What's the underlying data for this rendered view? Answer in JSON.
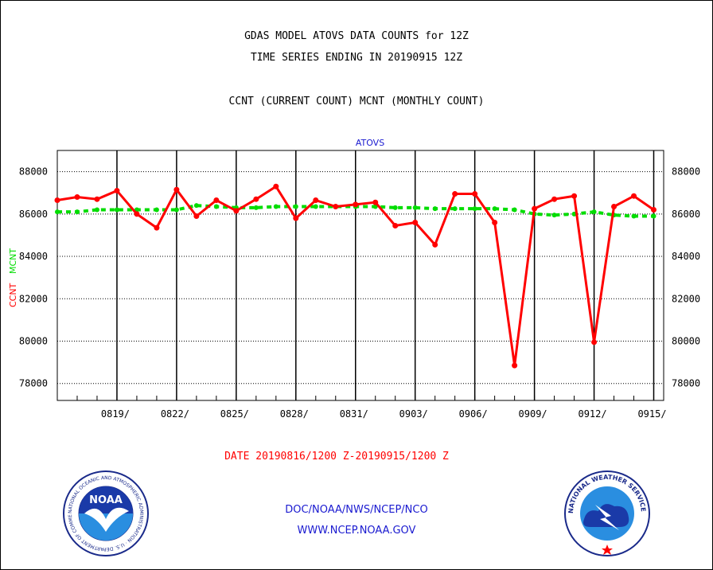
{
  "header": {
    "line1": "GDAS MODEL ATOVS DATA COUNTS for 12Z",
    "line2": "TIME SERIES ENDING IN 20190915 12Z",
    "line3": "CCNT (CURRENT COUNT) MCNT (MONTHLY COUNT)"
  },
  "footer": {
    "date_range": "DATE 20190816/1200 Z-20190915/1200 Z",
    "org": "DOC/NOAA/NWS/NCEP/NCO",
    "url": "WWW.NCEP.NOAA.GOV",
    "noaa_logo_text": "NOAA",
    "noaa_seal_text": "NATIONAL OCEANIC AND ATMOSPHERIC ADMINISTRATION · U.S. DEPARTMENT OF COMMERCE",
    "nws_seal_text": "NATIONAL WEATHER SERVICE"
  },
  "colors": {
    "ccnt": "#ff0000",
    "mcnt": "#00dd00",
    "subtitle": "#1a1ad0"
  },
  "chart_data": {
    "type": "line",
    "title": "ATOVS",
    "ylabel_ccnt": "CCNT",
    "ylabel_mcnt": "MCNT",
    "ylim": [
      77200,
      89000
    ],
    "yticks": [
      78000,
      80000,
      82000,
      84000,
      86000,
      88000
    ],
    "ytick_labels": [
      "78000",
      "80000",
      "82000",
      "84000",
      "86000",
      "88000"
    ],
    "xlim": [
      0,
      30.5
    ],
    "xticks": [
      3,
      6,
      9,
      12,
      15,
      18,
      21,
      24,
      27,
      30
    ],
    "xtick_labels": [
      "0819/",
      "0822/",
      "0825/",
      "0828/",
      "0831/",
      "0903/",
      "0906/",
      "0909/",
      "0912/",
      "0915/"
    ],
    "grid": true,
    "series": [
      {
        "name": "CCNT",
        "color": "#ff0000",
        "values": [
          86650,
          86800,
          86700,
          87100,
          86000,
          85350,
          87150,
          85900,
          86650,
          86150,
          86700,
          87300,
          85800,
          86650,
          86350,
          86450,
          86550,
          85450,
          85600,
          84550,
          86950,
          86950,
          85600,
          78850,
          86250,
          86700,
          86850,
          79950,
          86350,
          86850,
          86200
        ]
      },
      {
        "name": "MCNT",
        "color": "#00dd00",
        "values": [
          86100,
          86100,
          86200,
          86200,
          86200,
          86200,
          86200,
          86400,
          86350,
          86300,
          86300,
          86350,
          86350,
          86350,
          86350,
          86350,
          86350,
          86300,
          86300,
          86250,
          86250,
          86250,
          86250,
          86200,
          86000,
          85950,
          86000,
          86100,
          85950,
          85900,
          85900
        ]
      }
    ]
  }
}
